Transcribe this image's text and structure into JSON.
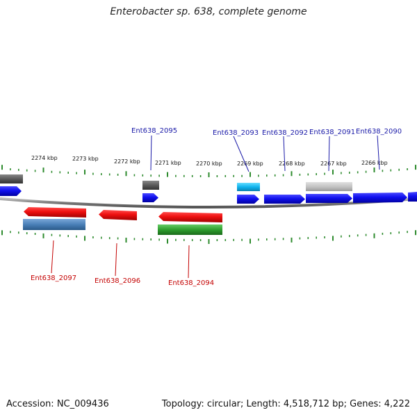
{
  "title": "Enterobacter sp. 638, complete genome",
  "footer": {
    "accession": "Accession: NC_009436",
    "stats": "Topology: circular; Length: 4,518,712 bp; Genes: 4,222"
  },
  "colors": {
    "backbone": "#888888",
    "tick": "#2e8b2e",
    "forward_label": "#1a1aa8",
    "reverse_label": "#c40000"
  },
  "scale_labels": [
    {
      "text": "2274 kbp",
      "pos_kbp": 2274
    },
    {
      "text": "2273 kbp",
      "pos_kbp": 2273
    },
    {
      "text": "2272 kbp",
      "pos_kbp": 2272
    },
    {
      "text": "2271 kbp",
      "pos_kbp": 2271
    },
    {
      "text": "2270 kbp",
      "pos_kbp": 2270
    },
    {
      "text": "2269 kbp",
      "pos_kbp": 2269
    },
    {
      "text": "2268 kbp",
      "pos_kbp": 2268
    },
    {
      "text": "2267 kbp",
      "pos_kbp": 2267
    },
    {
      "text": "2266 kbp",
      "pos_kbp": 2266
    }
  ],
  "genes": [
    {
      "label": "Ent638_2095",
      "strand": "forward",
      "color": "#1010ee"
    },
    {
      "label": "Ent638_2093",
      "strand": "forward",
      "color": "#1010ee"
    },
    {
      "label": "Ent638_2092",
      "strand": "forward",
      "color": "#1010ee"
    },
    {
      "label": "Ent638_2091",
      "strand": "forward",
      "color": "#1010ee"
    },
    {
      "label": "Ent638_2090",
      "strand": "forward",
      "color": "#1010ee"
    },
    {
      "label": "Ent638_2097",
      "strand": "reverse",
      "color": "#ee1010"
    },
    {
      "label": "Ent638_2096",
      "strand": "reverse",
      "color": "#ee1010"
    },
    {
      "label": "Ent638_2094",
      "strand": "reverse",
      "color": "#ee1010"
    }
  ]
}
